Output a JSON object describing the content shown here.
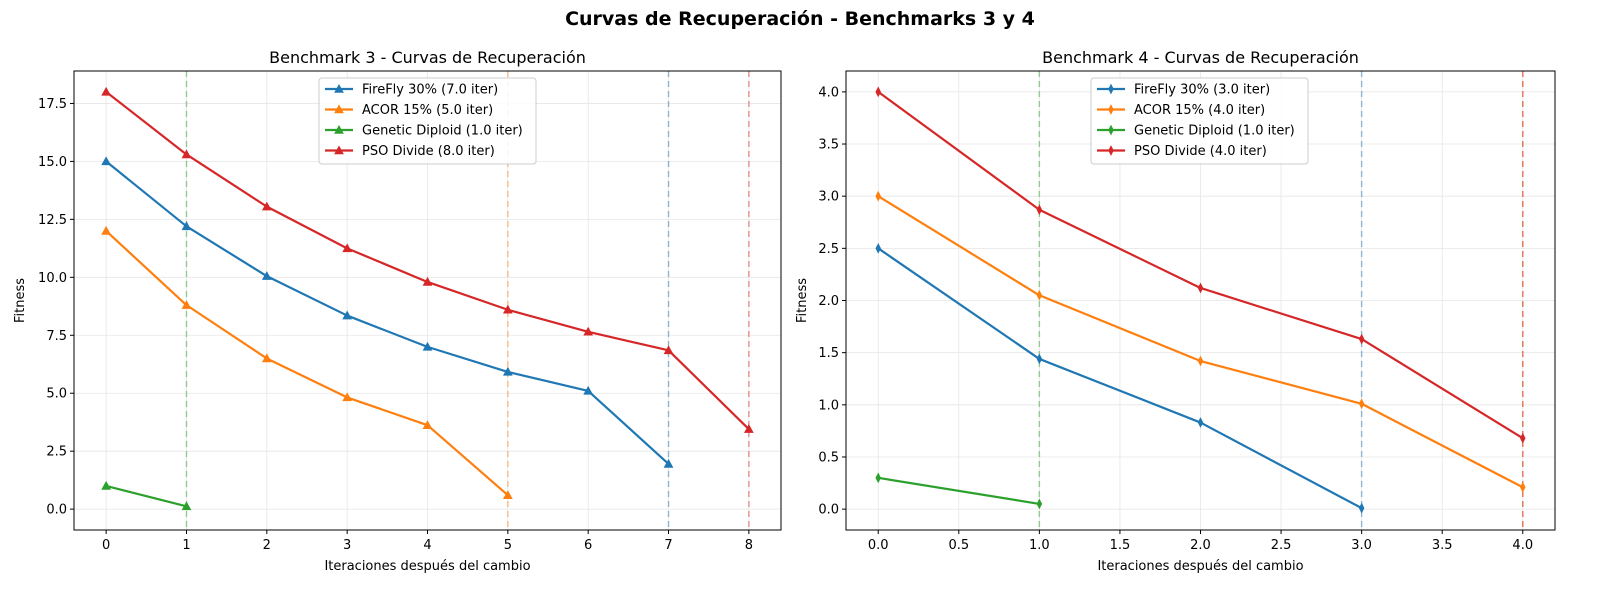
{
  "suptitle": "Curvas de Recuperación - Benchmarks 3 y 4",
  "chart_data": [
    {
      "type": "line",
      "title": "Benchmark 3 - Curvas de Recuperación",
      "xlabel": "Iteraciones después del cambio",
      "ylabel": "Fitness",
      "xlim": [
        -0.4,
        8.4
      ],
      "ylim": [
        -0.9,
        18.9
      ],
      "xticks": [
        0,
        1,
        2,
        3,
        4,
        5,
        6,
        7,
        8
      ],
      "xtick_labels": [
        "0",
        "1",
        "2",
        "3",
        "4",
        "5",
        "6",
        "7",
        "8"
      ],
      "yticks": [
        0,
        2.5,
        5,
        7.5,
        10,
        12.5,
        15,
        17.5
      ],
      "ytick_labels": [
        "0.0",
        "2.5",
        "5.0",
        "7.5",
        "10.0",
        "12.5",
        "15.0",
        "17.5"
      ],
      "grid": true,
      "legend_position": "upper-center",
      "marker": "triangle",
      "series": [
        {
          "name": "FireFly 30% (7.0 iter)",
          "color": "#1f77b4",
          "x": [
            0,
            1,
            2,
            3,
            4,
            5,
            6,
            7
          ],
          "y": [
            15.0,
            12.2,
            10.05,
            8.35,
            7.0,
            5.92,
            5.1,
            1.95
          ],
          "recovery_iter": 7
        },
        {
          "name": "ACOR 15% (5.0 iter)",
          "color": "#ff7f0e",
          "x": [
            0,
            1,
            2,
            3,
            4,
            5
          ],
          "y": [
            12.0,
            8.8,
            6.5,
            4.82,
            3.62,
            0.6
          ],
          "recovery_iter": 5
        },
        {
          "name": "Genetic Diploid (1.0 iter)",
          "color": "#2ca02c",
          "x": [
            0,
            1
          ],
          "y": [
            1.0,
            0.12
          ],
          "recovery_iter": 1
        },
        {
          "name": "PSO Divide (8.0 iter)",
          "color": "#d62728",
          "x": [
            0,
            1,
            2,
            3,
            4,
            5,
            6,
            7,
            8
          ],
          "y": [
            18.0,
            15.3,
            13.05,
            11.25,
            9.8,
            8.6,
            7.65,
            6.85,
            3.45
          ],
          "recovery_iter": 8
        }
      ]
    },
    {
      "type": "line",
      "title": "Benchmark 4 - Curvas de Recuperación",
      "xlabel": "Iteraciones después del cambio",
      "ylabel": "Fitness",
      "xlim": [
        -0.2,
        4.2
      ],
      "ylim": [
        -0.2,
        4.2
      ],
      "xticks": [
        0,
        0.5,
        1,
        1.5,
        2,
        2.5,
        3,
        3.5,
        4
      ],
      "xtick_labels": [
        "0.0",
        "0.5",
        "1.0",
        "1.5",
        "2.0",
        "2.5",
        "3.0",
        "3.5",
        "4.0"
      ],
      "yticks": [
        0,
        0.5,
        1,
        1.5,
        2,
        2.5,
        3,
        3.5,
        4
      ],
      "ytick_labels": [
        "0.0",
        "0.5",
        "1.0",
        "1.5",
        "2.0",
        "2.5",
        "3.0",
        "3.5",
        "4.0"
      ],
      "grid": true,
      "legend_position": "upper-center",
      "marker": "thin-diamond",
      "series": [
        {
          "name": "FireFly 30% (3.0 iter)",
          "color": "#1f77b4",
          "x": [
            0,
            1,
            2,
            3
          ],
          "y": [
            2.5,
            1.44,
            0.83,
            0.01
          ],
          "recovery_iter": 3
        },
        {
          "name": "ACOR 15% (4.0 iter)",
          "color": "#ff7f0e",
          "x": [
            0,
            1,
            2,
            3,
            4
          ],
          "y": [
            3.0,
            2.05,
            1.42,
            1.01,
            0.21
          ],
          "recovery_iter": 4
        },
        {
          "name": "Genetic Diploid (1.0 iter)",
          "color": "#2ca02c",
          "x": [
            0,
            1
          ],
          "y": [
            0.3,
            0.05
          ],
          "recovery_iter": 1
        },
        {
          "name": "PSO Divide (4.0 iter)",
          "color": "#d62728",
          "x": [
            0,
            1,
            2,
            3,
            4
          ],
          "y": [
            4.0,
            2.87,
            2.12,
            1.63,
            0.68
          ],
          "recovery_iter": 4
        }
      ]
    }
  ]
}
